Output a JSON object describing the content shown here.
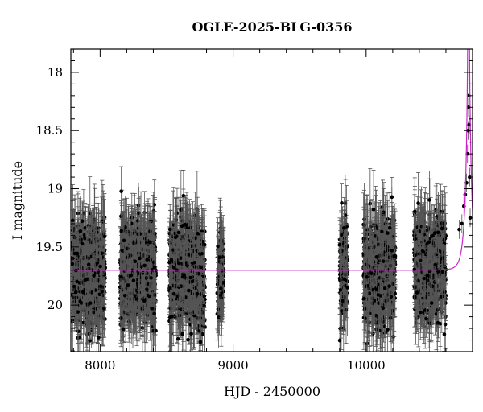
{
  "chart_data": {
    "type": "scatter",
    "title": "OGLE-2025-BLG-0356",
    "xlabel": "HJD - 2450000",
    "ylabel": "I magnitude",
    "xlim": [
      7780,
      10800
    ],
    "ylim": [
      20.4,
      17.8
    ],
    "y_inverted": true,
    "grid": false,
    "xticks": [
      8000,
      9000,
      10000
    ],
    "xtick_labels": [
      "8000",
      "9000",
      "10000"
    ],
    "yticks": [
      18,
      18.5,
      19,
      19.5,
      20
    ],
    "ytick_labels": [
      "18",
      "18.5",
      "19",
      "19.5",
      "20"
    ],
    "baseline_magnitude": 19.7,
    "peak_time": 10770,
    "colors": {
      "points": "#000000",
      "errorbars": "#555555",
      "model": "#cc22cc"
    },
    "seasons": [
      {
        "x_range": [
          7790,
          8040
        ],
        "y_mean": 19.72,
        "y_spread": 0.28
      },
      {
        "x_range": [
          8150,
          8420
        ],
        "y_mean": 19.72,
        "y_spread": 0.28
      },
      {
        "x_range": [
          8520,
          8790
        ],
        "y_mean": 19.72,
        "y_spread": 0.28
      },
      {
        "x_range": [
          8880,
          8930
        ],
        "y_mean": 19.72,
        "y_spread": 0.2
      },
      {
        "x_range": [
          9800,
          9860
        ],
        "y_mean": 19.68,
        "y_spread": 0.28
      },
      {
        "x_range": [
          9980,
          10220
        ],
        "y_mean": 19.72,
        "y_spread": 0.28
      },
      {
        "x_range": [
          10360,
          10600
        ],
        "y_mean": 19.68,
        "y_spread": 0.28
      }
    ],
    "event_points": [
      {
        "x": 10700,
        "y": 19.35
      },
      {
        "x": 10720,
        "y": 19.3
      },
      {
        "x": 10735,
        "y": 19.15
      },
      {
        "x": 10745,
        "y": 19.05
      },
      {
        "x": 10755,
        "y": 18.95
      },
      {
        "x": 10762,
        "y": 18.7
      },
      {
        "x": 10767,
        "y": 18.5
      },
      {
        "x": 10770,
        "y": 18.3
      },
      {
        "x": 10772,
        "y": 18.2
      },
      {
        "x": 10775,
        "y": 18.45
      },
      {
        "x": 10778,
        "y": 18.9
      },
      {
        "x": 10782,
        "y": 19.25
      }
    ]
  }
}
